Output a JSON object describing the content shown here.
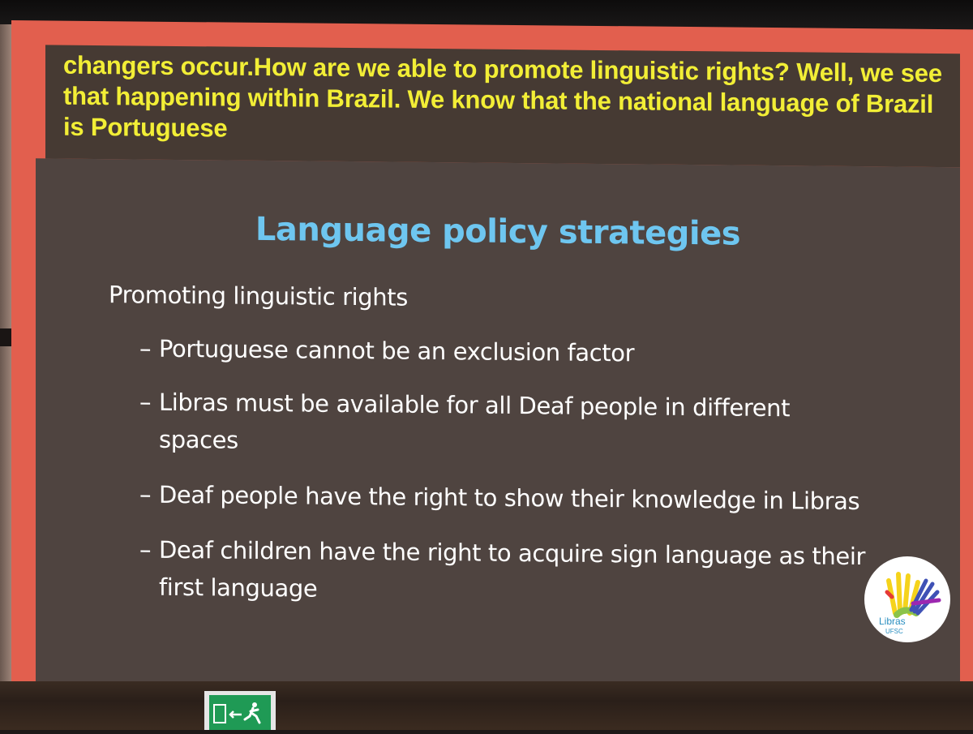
{
  "caption": {
    "text": "changers occur.How are we able to promote linguistic rights? Well, we see that happening within Brazil. We know that the national language of Brazil is Portuguese"
  },
  "slide": {
    "title": "Language policy strategies",
    "subheading": "Promoting linguistic rights",
    "bullet_marker": "–",
    "bullets": [
      "Portuguese cannot be an exclusion factor",
      "Libras must be available for all Deaf people in different spaces",
      "Deaf people have the right to show their knowledge in Libras",
      "Deaf children have the right to acquire sign language as their first language"
    ]
  },
  "logo": {
    "name": "Libras",
    "institution": "UFSC",
    "colors": [
      "#f5d31b",
      "#8bc34a",
      "#3f51b5",
      "#9c27b0",
      "#e53935"
    ]
  },
  "colors": {
    "frame": "#e25f4e",
    "caption_text": "#f2ee36",
    "title": "#6ec6f0",
    "slide_bg": "#4f4440"
  },
  "icons": {
    "exit_sign": "emergency-exit-icon"
  }
}
